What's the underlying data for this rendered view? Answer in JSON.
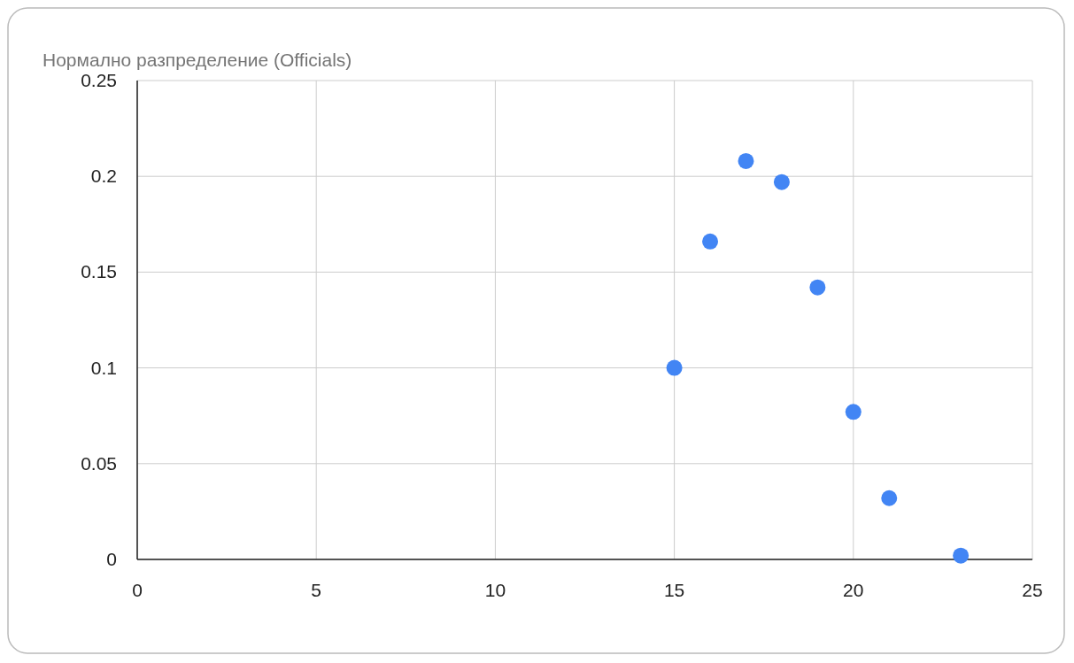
{
  "chart_data": {
    "type": "scatter",
    "title": "Нормално разпределение (Officials)",
    "x": [
      15,
      16,
      17,
      18,
      19,
      20,
      21,
      23
    ],
    "series": [
      {
        "color": "#4285f4",
        "values": [
          0.1,
          0.166,
          0.208,
          0.197,
          0.142,
          0.077,
          0.032,
          0.002
        ]
      }
    ],
    "xlim": [
      0,
      25
    ],
    "xticks": [
      0,
      5,
      10,
      15,
      20,
      25
    ],
    "ylim": [
      0,
      0.25
    ],
    "yticks": [
      0,
      0.05,
      0.1,
      0.15,
      0.2,
      0.25
    ],
    "grid": true,
    "marker": "circle"
  }
}
